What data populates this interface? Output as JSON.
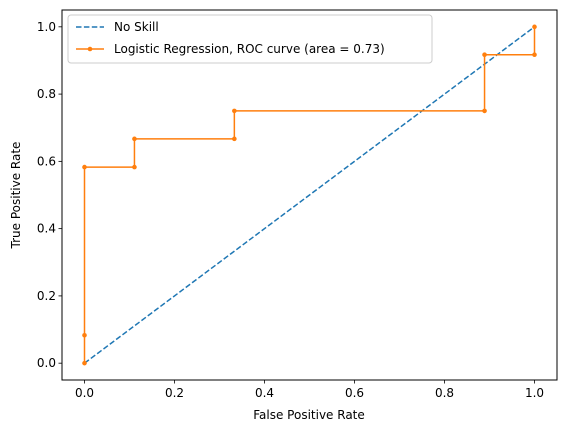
{
  "chart_data": {
    "type": "line",
    "xlabel": "False Positive Rate",
    "ylabel": "True Positive Rate",
    "xlim": [
      -0.05,
      1.05
    ],
    "ylim": [
      -0.05,
      1.05
    ],
    "xticks": [
      0.0,
      0.2,
      0.4,
      0.6,
      0.8,
      1.0
    ],
    "yticks": [
      0.0,
      0.2,
      0.4,
      0.6,
      0.8,
      1.0
    ],
    "xtick_labels": [
      "0.0",
      "0.2",
      "0.4",
      "0.6",
      "0.8",
      "1.0"
    ],
    "ytick_labels": [
      "0.0",
      "0.2",
      "0.4",
      "0.6",
      "0.8",
      "1.0"
    ],
    "grid": false,
    "legend_position": "top-left",
    "series": [
      {
        "name": "No Skill",
        "style": "dashed",
        "color": "#1f77b4",
        "x": [
          0,
          1
        ],
        "y": [
          0,
          1
        ]
      },
      {
        "name": "Logistic Regression, ROC curve (area = 0.73)",
        "style": "solid-markers",
        "color": "#ff7f0e",
        "x": [
          0.0,
          0.0,
          0.0,
          0.111,
          0.111,
          0.333,
          0.333,
          0.889,
          0.889,
          1.0,
          1.0
        ],
        "y": [
          0.0,
          0.083,
          0.583,
          0.583,
          0.667,
          0.667,
          0.75,
          0.75,
          0.917,
          0.917,
          1.0
        ]
      }
    ]
  }
}
